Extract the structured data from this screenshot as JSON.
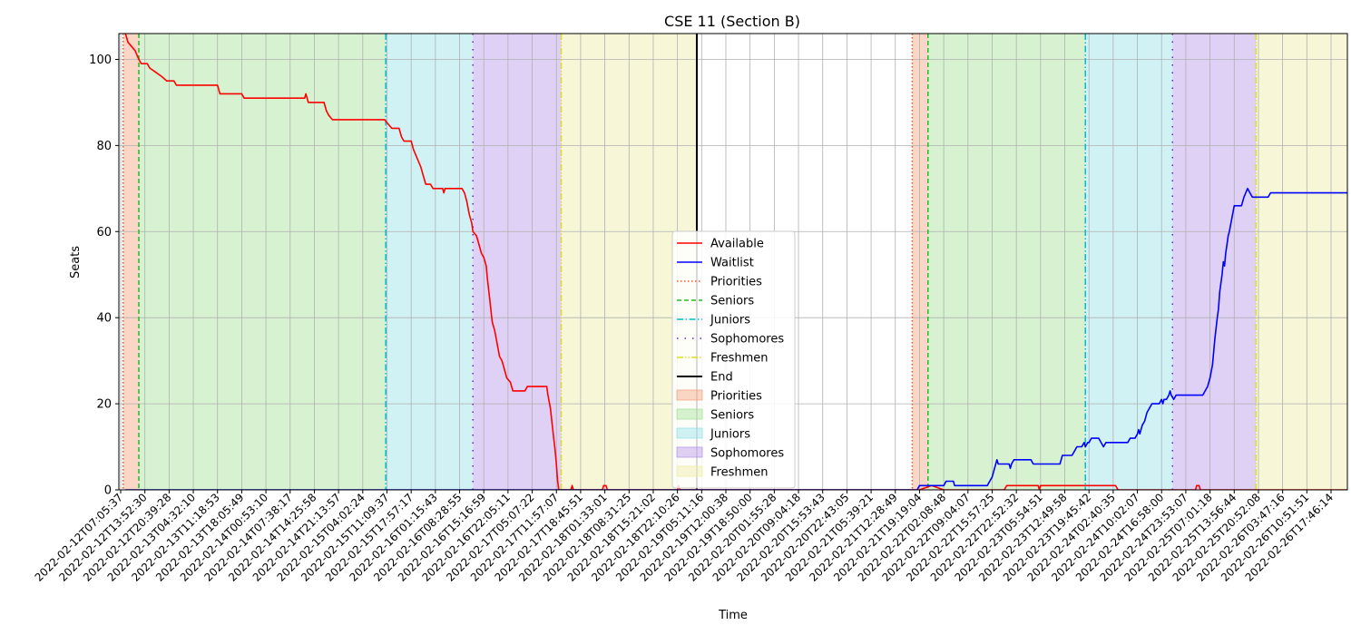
{
  "chart_data": {
    "type": "line",
    "title": "CSE 11 (Section B)",
    "xlabel": "Time",
    "ylabel": "Seats",
    "ylim": [
      0,
      106
    ],
    "yticks": [
      0,
      20,
      40,
      60,
      80,
      100
    ],
    "grid": true,
    "legend_position": "center",
    "x_tick_labels": [
      "2022-02-12T07:05:37",
      "2022-02-12T13:52:30",
      "2022-02-12T20:39:28",
      "2022-02-13T04:32:10",
      "2022-02-13T11:18:53",
      "2022-02-13T18:05:49",
      "2022-02-14T00:53:10",
      "2022-02-14T07:38:17",
      "2022-02-14T14:25:58",
      "2022-02-14T21:13:57",
      "2022-02-15T04:02:24",
      "2022-02-15T11:09:37",
      "2022-02-15T17:57:17",
      "2022-02-16T01:15:43",
      "2022-02-16T08:28:55",
      "2022-02-16T15:16:59",
      "2022-02-16T22:05:11",
      "2022-02-17T05:07:22",
      "2022-02-17T11:57:07",
      "2022-02-17T18:45:51",
      "2022-02-18T01:33:01",
      "2022-02-18T08:31:25",
      "2022-02-18T15:21:02",
      "2022-02-18T22:10:26",
      "2022-02-19T05:11:16",
      "2022-02-19T12:00:38",
      "2022-02-19T18:50:00",
      "2022-02-20T01:55:28",
      "2022-02-20T09:04:18",
      "2022-02-20T15:53:43",
      "2022-02-20T22:43:05",
      "2022-02-21T05:39:21",
      "2022-02-21T12:28:49",
      "2022-02-21T19:19:04",
      "2022-02-22T02:08:48",
      "2022-02-22T09:04:07",
      "2022-02-22T15:57:25",
      "2022-02-22T22:52:32",
      "2022-02-23T05:54:51",
      "2022-02-23T12:49:58",
      "2022-02-23T19:45:42",
      "2022-02-24T02:40:35",
      "2022-02-24T10:02:07",
      "2022-02-24T16:58:00",
      "2022-02-24T23:53:07",
      "2022-02-25T07:01:18",
      "2022-02-25T13:56:44",
      "2022-02-25T20:52:08",
      "2022-02-26T03:47:16",
      "2022-02-26T10:51:51",
      "2022-02-26T17:46:14"
    ],
    "x_range": [
      -0.1,
      51.8
    ],
    "series": [
      {
        "name": "Available",
        "color": "#ff0000",
        "points": [
          [
            0.2,
            106
          ],
          [
            0.3,
            104
          ],
          [
            0.45,
            103
          ],
          [
            0.6,
            102
          ],
          [
            0.75,
            100
          ],
          [
            0.85,
            99
          ],
          [
            1.1,
            99
          ],
          [
            1.2,
            98
          ],
          [
            1.45,
            97
          ],
          [
            1.7,
            96
          ],
          [
            1.9,
            95
          ],
          [
            2.2,
            95
          ],
          [
            2.3,
            94
          ],
          [
            3.0,
            94
          ],
          [
            3.8,
            94
          ],
          [
            4.0,
            94
          ],
          [
            4.1,
            92
          ],
          [
            4.6,
            92
          ],
          [
            5.0,
            92
          ],
          [
            5.1,
            91
          ],
          [
            6.0,
            91
          ],
          [
            7.0,
            91
          ],
          [
            7.6,
            91
          ],
          [
            7.65,
            92
          ],
          [
            7.75,
            90
          ],
          [
            8.4,
            90
          ],
          [
            8.5,
            88
          ],
          [
            8.6,
            87
          ],
          [
            8.75,
            86
          ],
          [
            9.5,
            86
          ],
          [
            10.5,
            86
          ],
          [
            10.9,
            86
          ],
          [
            11.05,
            85
          ],
          [
            11.2,
            84
          ],
          [
            11.5,
            84
          ],
          [
            11.6,
            82
          ],
          [
            11.7,
            81
          ],
          [
            12.0,
            81
          ],
          [
            12.1,
            79
          ],
          [
            12.25,
            77
          ],
          [
            12.4,
            75
          ],
          [
            12.5,
            73
          ],
          [
            12.6,
            71
          ],
          [
            12.8,
            71
          ],
          [
            12.9,
            70
          ],
          [
            13.3,
            70
          ],
          [
            13.35,
            69
          ],
          [
            13.4,
            70
          ],
          [
            14.0,
            70
          ],
          [
            14.1,
            70
          ],
          [
            14.2,
            69
          ],
          [
            14.3,
            67
          ],
          [
            14.4,
            64
          ],
          [
            14.5,
            62
          ],
          [
            14.55,
            60
          ],
          [
            14.7,
            59
          ],
          [
            14.8,
            57
          ],
          [
            14.9,
            55
          ],
          [
            15.0,
            54
          ],
          [
            15.1,
            52
          ],
          [
            15.15,
            49
          ],
          [
            15.25,
            44
          ],
          [
            15.35,
            39
          ],
          [
            15.45,
            37
          ],
          [
            15.55,
            34
          ],
          [
            15.65,
            31
          ],
          [
            15.75,
            30
          ],
          [
            15.85,
            28
          ],
          [
            15.95,
            26
          ],
          [
            16.1,
            25
          ],
          [
            16.2,
            23
          ],
          [
            16.7,
            23
          ],
          [
            16.8,
            24
          ],
          [
            17.6,
            24
          ],
          [
            17.65,
            22
          ],
          [
            17.75,
            19
          ],
          [
            17.85,
            14
          ],
          [
            17.95,
            9
          ],
          [
            18.0,
            6
          ],
          [
            18.05,
            2
          ],
          [
            18.1,
            0
          ],
          [
            18.6,
            0
          ],
          [
            18.65,
            1
          ],
          [
            18.7,
            0
          ],
          [
            19.9,
            0
          ],
          [
            19.95,
            1
          ],
          [
            20.05,
            1
          ],
          [
            20.1,
            0
          ],
          [
            23.0,
            0
          ],
          [
            23.05,
            1
          ],
          [
            23.1,
            0
          ],
          [
            33.0,
            0
          ],
          [
            33.5,
            1
          ],
          [
            34.0,
            0
          ],
          [
            34.5,
            0
          ],
          [
            35.5,
            0
          ],
          [
            36.5,
            0
          ],
          [
            36.6,
            1
          ],
          [
            37.9,
            1
          ],
          [
            37.95,
            0
          ],
          [
            38.0,
            1
          ],
          [
            41.1,
            1
          ],
          [
            41.2,
            0
          ],
          [
            44.4,
            0
          ],
          [
            44.45,
            1
          ],
          [
            44.55,
            1
          ],
          [
            44.6,
            0
          ],
          [
            51.8,
            0
          ]
        ]
      },
      {
        "name": "Waitlist",
        "color": "#0000ff",
        "points": [
          [
            0.2,
            0
          ],
          [
            32.9,
            0
          ],
          [
            33.0,
            1
          ],
          [
            33.4,
            1
          ],
          [
            33.5,
            1
          ],
          [
            34.0,
            1
          ],
          [
            34.1,
            2
          ],
          [
            34.4,
            2
          ],
          [
            34.45,
            1
          ],
          [
            35.2,
            1
          ],
          [
            35.8,
            1
          ],
          [
            35.9,
            2
          ],
          [
            36.0,
            3
          ],
          [
            36.1,
            5
          ],
          [
            36.2,
            7
          ],
          [
            36.25,
            6
          ],
          [
            36.7,
            6
          ],
          [
            36.75,
            5
          ],
          [
            36.8,
            6
          ],
          [
            36.9,
            7
          ],
          [
            37.6,
            7
          ],
          [
            37.7,
            6
          ],
          [
            38.5,
            6
          ],
          [
            38.8,
            6
          ],
          [
            38.9,
            8
          ],
          [
            39.3,
            8
          ],
          [
            39.4,
            9
          ],
          [
            39.5,
            10
          ],
          [
            39.7,
            10
          ],
          [
            39.8,
            11
          ],
          [
            39.85,
            10
          ],
          [
            39.95,
            11
          ],
          [
            40.0,
            11
          ],
          [
            40.1,
            12
          ],
          [
            40.4,
            12
          ],
          [
            40.5,
            11
          ],
          [
            40.6,
            10
          ],
          [
            40.7,
            11
          ],
          [
            41.6,
            11
          ],
          [
            41.7,
            12
          ],
          [
            41.9,
            12
          ],
          [
            42.0,
            13
          ],
          [
            42.05,
            14
          ],
          [
            42.1,
            13
          ],
          [
            42.2,
            15
          ],
          [
            42.3,
            16
          ],
          [
            42.4,
            18
          ],
          [
            42.5,
            19
          ],
          [
            42.6,
            20
          ],
          [
            42.9,
            20
          ],
          [
            43.0,
            21
          ],
          [
            43.05,
            20
          ],
          [
            43.1,
            21
          ],
          [
            43.2,
            21
          ],
          [
            43.3,
            22
          ],
          [
            43.35,
            23
          ],
          [
            43.4,
            22
          ],
          [
            43.5,
            21
          ],
          [
            43.6,
            22
          ],
          [
            44.5,
            22
          ],
          [
            44.7,
            22
          ],
          [
            44.9,
            24
          ],
          [
            45.0,
            26
          ],
          [
            45.1,
            29
          ],
          [
            45.15,
            32
          ],
          [
            45.2,
            35
          ],
          [
            45.3,
            40
          ],
          [
            45.35,
            42
          ],
          [
            45.4,
            46
          ],
          [
            45.5,
            50
          ],
          [
            45.55,
            53
          ],
          [
            45.6,
            52
          ],
          [
            45.65,
            55
          ],
          [
            45.7,
            57
          ],
          [
            45.75,
            59
          ],
          [
            45.8,
            60
          ],
          [
            45.9,
            63
          ],
          [
            46.0,
            66
          ],
          [
            46.3,
            66
          ],
          [
            46.4,
            68
          ],
          [
            46.55,
            70
          ],
          [
            46.65,
            69
          ],
          [
            46.75,
            68
          ],
          [
            47.4,
            68
          ],
          [
            47.5,
            69
          ],
          [
            51.8,
            69
          ]
        ]
      }
    ],
    "markers": [
      {
        "name": "Priorities",
        "x": 0.1,
        "color": "#ee5522",
        "style": "dotted"
      },
      {
        "name": "Seniors",
        "x": 0.75,
        "color": "#22bb22",
        "style": "dashed"
      },
      {
        "name": "Juniors",
        "x": 10.95,
        "color": "#00bbcc",
        "style": "dashdot"
      },
      {
        "name": "Sophomores",
        "x": 14.55,
        "color": "#6622bb",
        "style": "loosedot"
      },
      {
        "name": "Freshmen",
        "x": 18.2,
        "color": "#dddd22",
        "style": "dashdotdot"
      },
      {
        "name": "End",
        "x": 23.8,
        "color": "#000000",
        "style": "solid"
      },
      {
        "name": "Priorities",
        "x": 32.7,
        "color": "#ee5522",
        "style": "dotted"
      },
      {
        "name": "Seniors",
        "x": 33.35,
        "color": "#22bb22",
        "style": "dashed"
      },
      {
        "name": "Juniors",
        "x": 39.85,
        "color": "#00bbcc",
        "style": "dashdot"
      },
      {
        "name": "Sophomores",
        "x": 43.45,
        "color": "#6622bb",
        "style": "loosedot"
      },
      {
        "name": "Freshmen",
        "x": 46.9,
        "color": "#dddd22",
        "style": "dashdotdot"
      },
      {
        "name": "End",
        "x": 52.6,
        "color": "#000000",
        "style": "solid"
      }
    ],
    "spans": [
      {
        "name": "Priorities",
        "x0": 0.1,
        "x1": 0.75,
        "color": "#f4a582"
      },
      {
        "name": "Seniors",
        "x0": 0.75,
        "x1": 10.95,
        "color": "#a6e39a"
      },
      {
        "name": "Juniors",
        "x0": 10.95,
        "x1": 14.55,
        "color": "#9ae3e8"
      },
      {
        "name": "Sophomores",
        "x0": 14.55,
        "x1": 18.2,
        "color": "#b89ae8"
      },
      {
        "name": "Freshmen",
        "x0": 18.2,
        "x1": 23.8,
        "color": "#eeeea8"
      },
      {
        "name": "Priorities",
        "x0": 32.7,
        "x1": 33.35,
        "color": "#f4a582"
      },
      {
        "name": "Seniors",
        "x0": 33.35,
        "x1": 39.85,
        "color": "#a6e39a"
      },
      {
        "name": "Juniors",
        "x0": 39.85,
        "x1": 43.45,
        "color": "#9ae3e8"
      },
      {
        "name": "Sophomores",
        "x0": 43.45,
        "x1": 46.9,
        "color": "#b89ae8"
      },
      {
        "name": "Freshmen",
        "x0": 46.9,
        "x1": 52.6,
        "color": "#eeeea8"
      }
    ],
    "legend": [
      {
        "label": "Available",
        "kind": "line",
        "color": "#ff0000",
        "style": "solid"
      },
      {
        "label": "Waitlist",
        "kind": "line",
        "color": "#0000ff",
        "style": "solid"
      },
      {
        "label": "Priorities",
        "kind": "line",
        "color": "#ee5522",
        "style": "dotted"
      },
      {
        "label": "Seniors",
        "kind": "line",
        "color": "#22bb22",
        "style": "dashed"
      },
      {
        "label": "Juniors",
        "kind": "line",
        "color": "#00bbcc",
        "style": "dashdot"
      },
      {
        "label": "Sophomores",
        "kind": "line",
        "color": "#6622bb",
        "style": "loosedot"
      },
      {
        "label": "Freshmen",
        "kind": "line",
        "color": "#dddd22",
        "style": "dashdotdot"
      },
      {
        "label": "End",
        "kind": "line",
        "color": "#000000",
        "style": "solid"
      },
      {
        "label": "Priorities",
        "kind": "patch",
        "color": "#f4a582"
      },
      {
        "label": "Seniors",
        "kind": "patch",
        "color": "#a6e39a"
      },
      {
        "label": "Juniors",
        "kind": "patch",
        "color": "#9ae3e8"
      },
      {
        "label": "Sophomores",
        "kind": "patch",
        "color": "#b89ae8"
      },
      {
        "label": "Freshmen",
        "kind": "patch",
        "color": "#eeeea8"
      }
    ]
  }
}
